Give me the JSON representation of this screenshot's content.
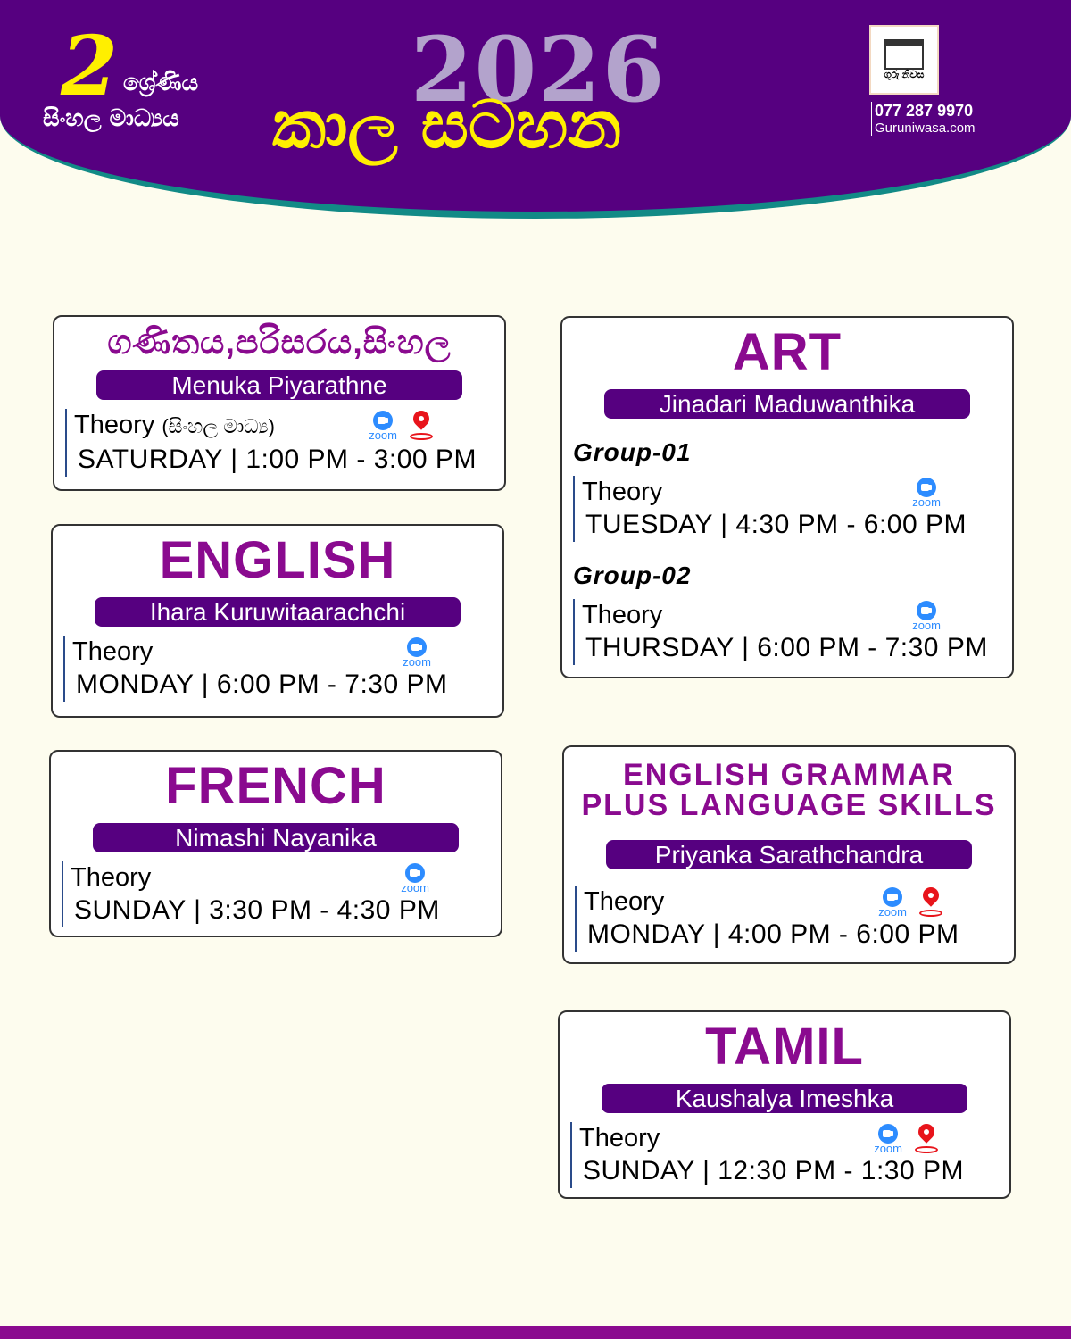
{
  "header": {
    "grade": "2",
    "grade_word": "ශ්‍රේණිය",
    "medium": "සිංහල මාධ්‍යය",
    "year": "2026",
    "title": "කාල සටහන",
    "logo_text": "ගුරු නිවස",
    "phone": "077 287 9970",
    "website": "Guruniwasa.com"
  },
  "colors": {
    "purple": "#560080",
    "subject": "#8a0a8f",
    "yellow": "#ffef00",
    "teal": "#128a86",
    "zoom": "#2d8cff",
    "pin": "#e8141b"
  },
  "cards": [
    {
      "subject": "ගණිතය,පරිසරය,සිංහල",
      "teacher": "Menuka Piyarathne",
      "groups": [
        {
          "label": "",
          "type": "Theory",
          "note": "(සිංහල මාධ්‍ය)",
          "time": "SATURDAY | 1:00 PM - 3:00 PM",
          "icons": [
            "zoom-icon",
            "location-pin-icon"
          ]
        }
      ]
    },
    {
      "subject": "ENGLISH",
      "teacher": "Ihara Kuruwitaarachchi",
      "groups": [
        {
          "label": "",
          "type": "Theory",
          "time": "MONDAY | 6:00 PM - 7:30 PM",
          "icons": [
            "zoom-icon"
          ]
        }
      ]
    },
    {
      "subject": "FRENCH",
      "teacher": "Nimashi Nayanika",
      "groups": [
        {
          "label": "",
          "type": "Theory",
          "time": "SUNDAY | 3:30 PM - 4:30 PM",
          "icons": [
            "zoom-icon"
          ]
        }
      ]
    },
    {
      "subject": "ART",
      "teacher": "Jinadari Maduwanthika",
      "groups": [
        {
          "label": "Group-01",
          "type": "Theory",
          "time": "TUESDAY | 4:30 PM - 6:00 PM",
          "icons": [
            "zoom-icon"
          ]
        },
        {
          "label": "Group-02",
          "type": "Theory",
          "time": "THURSDAY | 6:00 PM - 7:30 PM",
          "icons": [
            "zoom-icon"
          ]
        }
      ]
    },
    {
      "subject": "ENGLISH GRAMMAR\nPLUS LANGUAGE SKILLS",
      "teacher": "Priyanka Sarathchandra",
      "groups": [
        {
          "label": "",
          "type": "Theory",
          "time": "MONDAY | 4:00 PM - 6:00 PM",
          "icons": [
            "zoom-icon",
            "location-pin-icon"
          ]
        }
      ]
    },
    {
      "subject": "TAMIL",
      "teacher": "Kaushalya Imeshka",
      "groups": [
        {
          "label": "",
          "type": "Theory",
          "time": "SUNDAY | 12:30 PM - 1:30 PM",
          "icons": [
            "zoom-icon",
            "location-pin-icon"
          ]
        }
      ]
    }
  ],
  "zoom_label": "zoom"
}
